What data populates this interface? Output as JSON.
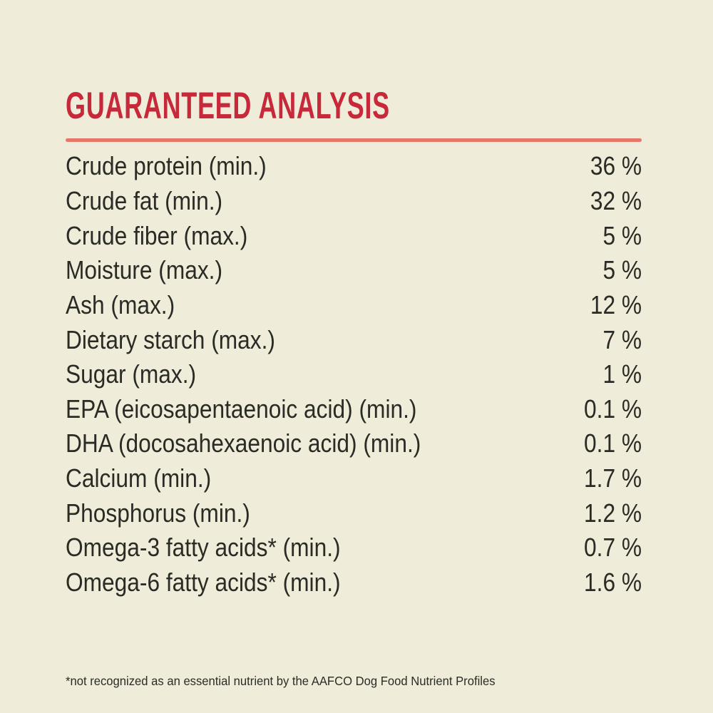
{
  "page": {
    "background_color": "#EFEDDA",
    "title_color": "#C8293A",
    "divider_color": "#E6756A",
    "text_color": "#2B2B26"
  },
  "header": {
    "title": "GUARANTEED ANALYSIS"
  },
  "analysis": {
    "rows": [
      {
        "label": "Crude protein (min.)",
        "value": "36 %"
      },
      {
        "label": "Crude fat (min.)",
        "value": "32 %"
      },
      {
        "label": "Crude fiber (max.)",
        "value": "5 %"
      },
      {
        "label": "Moisture (max.)",
        "value": "5 %"
      },
      {
        "label": "Ash (max.)",
        "value": "12 %"
      },
      {
        "label": "Dietary starch (max.)",
        "value": "7 %"
      },
      {
        "label": "Sugar (max.)",
        "value": "1 %"
      },
      {
        "label": "EPA (eicosapentaenoic acid) (min.)",
        "value": "0.1 %"
      },
      {
        "label": "DHA (docosahexaenoic acid) (min.)",
        "value": "0.1 %"
      },
      {
        "label": "Calcium (min.)",
        "value": "1.7 %"
      },
      {
        "label": "Phosphorus (min.)",
        "value": "1.2 %"
      },
      {
        "label": "Omega-3 fatty acids* (min.)",
        "value": "0.7 %"
      },
      {
        "label": "Omega-6 fatty acids* (min.)",
        "value": "1.6 %"
      }
    ]
  },
  "footer": {
    "footnote": "*not recognized as an essential nutrient by the AAFCO Dog Food Nutrient Profiles"
  }
}
